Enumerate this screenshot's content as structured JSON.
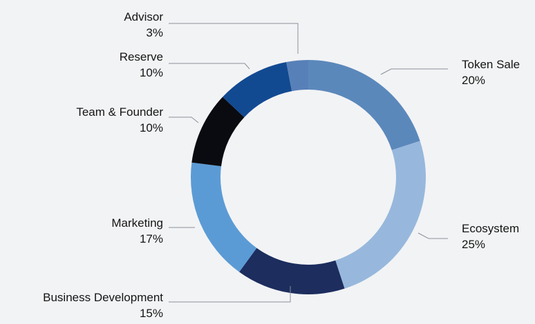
{
  "chart_data": {
    "type": "pie",
    "variant": "donut",
    "start_angle_deg": 0,
    "direction": "clockwise",
    "slices": [
      {
        "label": "Token Sale",
        "pct_label": "20%",
        "value": 20,
        "color": "#5b88bb",
        "side": "right"
      },
      {
        "label": "Ecosystem",
        "pct_label": "25%",
        "value": 25,
        "color": "#97b8dc",
        "side": "right"
      },
      {
        "label": "Business Development",
        "pct_label": "15%",
        "value": 15,
        "color": "#1c2d5e",
        "side": "left"
      },
      {
        "label": "Marketing",
        "pct_label": "17%",
        "value": 17,
        "color": "#5b9bd5",
        "side": "left"
      },
      {
        "label": "Team & Founder",
        "pct_label": "10%",
        "value": 10,
        "color": "#0a0b10",
        "side": "left"
      },
      {
        "label": "Reserve",
        "pct_label": "10%",
        "value": 10,
        "color": "#124a92",
        "side": "left"
      },
      {
        "label": "Advisor",
        "pct_label": "3%",
        "value": 3,
        "color": "#5880b8",
        "side": "left"
      }
    ]
  },
  "colors": {
    "background": "#f2f3f5",
    "leader_line": "#8a8f96",
    "text": "#141414"
  }
}
